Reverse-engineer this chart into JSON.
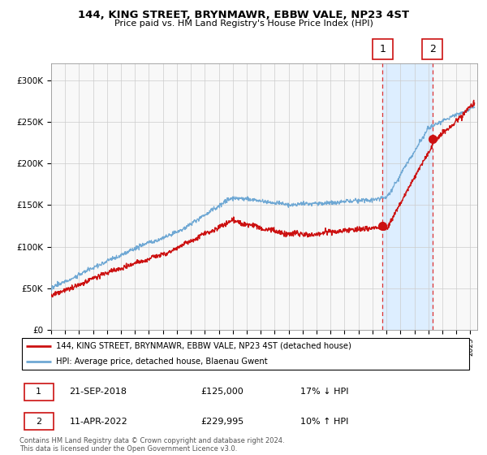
{
  "title": "144, KING STREET, BRYNMAWR, EBBW VALE, NP23 4ST",
  "subtitle": "Price paid vs. HM Land Registry's House Price Index (HPI)",
  "ylim": [
    0,
    320000
  ],
  "yticks": [
    0,
    50000,
    100000,
    150000,
    200000,
    250000,
    300000
  ],
  "ytick_labels": [
    "£0",
    "£50K",
    "£100K",
    "£150K",
    "£200K",
    "£250K",
    "£300K"
  ],
  "sale1_date": 2018.73,
  "sale1_price": 125000,
  "sale2_date": 2022.28,
  "sale2_price": 229995,
  "hpi_color": "#6fa8d4",
  "price_color": "#cc1111",
  "marker_box_color": "#cc1111",
  "vline_color": "#dd3333",
  "shading_color": "#ddeeff",
  "grid_color": "#cccccc",
  "background_color": "#f8f8f8",
  "legend_label1": "144, KING STREET, BRYNMAWR, EBBW VALE, NP23 4ST (detached house)",
  "legend_label2": "HPI: Average price, detached house, Blaenau Gwent",
  "footnote": "Contains HM Land Registry data © Crown copyright and database right 2024.\nThis data is licensed under the Open Government Licence v3.0.",
  "table_row1": [
    "1",
    "21-SEP-2018",
    "£125,000",
    "17% ↓ HPI"
  ],
  "table_row2": [
    "2",
    "11-APR-2022",
    "£229,995",
    "10% ↑ HPI"
  ]
}
